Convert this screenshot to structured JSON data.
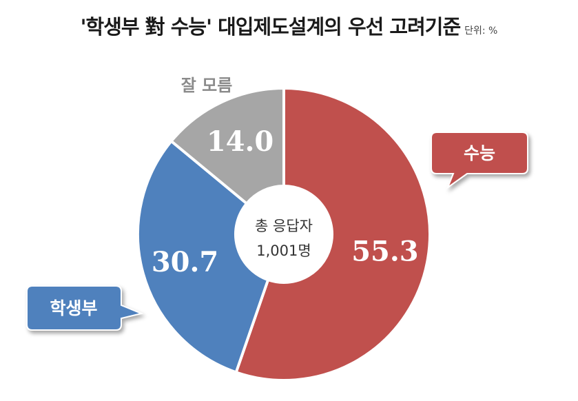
{
  "title": "'학생부 對 수능' 대입제도설계의 우선 고려기준",
  "unit": "단위: %",
  "center": {
    "line1": "총 응답자",
    "line2": "1,001명"
  },
  "colors": {
    "suneung": "#c0504d",
    "haksaengbu": "#4f81bd",
    "unknown": "#a6a6a6"
  },
  "chart_data": {
    "type": "pie",
    "title": "'학생부 對 수능' 대입제도설계의 우선 고려기준",
    "unit": "%",
    "categories": [
      "수능",
      "학생부",
      "잘 모름"
    ],
    "values": [
      55.3,
      30.7,
      14.0
    ],
    "labels": [
      "55.3",
      "30.7",
      "14.0"
    ]
  }
}
